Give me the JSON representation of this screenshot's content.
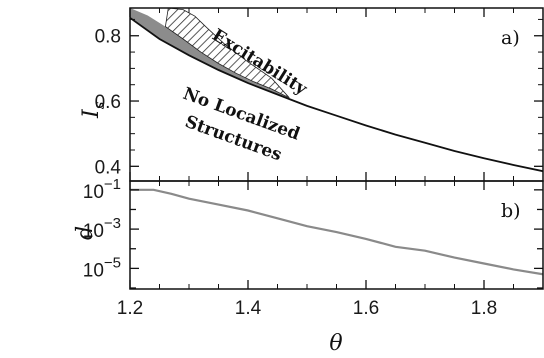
{
  "chart_data": [
    {
      "panel": "a)",
      "type": "area",
      "ylabel": "I",
      "ylabel_sub": "s",
      "xlim": [
        1.2,
        1.9
      ],
      "ylim": [
        0.355,
        0.885
      ],
      "yticks": [
        "0.4",
        "0.6",
        "0.8"
      ],
      "ytick_values": [
        0.4,
        0.6,
        0.8
      ],
      "region_labels": [
        "Excitability",
        "No Localized",
        "Structures"
      ],
      "boundary_curve": {
        "x": [
          1.2,
          1.25,
          1.3,
          1.35,
          1.4,
          1.45,
          1.5,
          1.55,
          1.6,
          1.65,
          1.7,
          1.75,
          1.8,
          1.85,
          1.9
        ],
        "y": [
          0.855,
          0.79,
          0.74,
          0.695,
          0.655,
          0.62,
          0.585,
          0.555,
          0.525,
          0.497,
          0.472,
          0.447,
          0.425,
          0.404,
          0.385
        ]
      },
      "gray_region_upper": {
        "x": [
          1.2,
          1.23,
          1.26,
          1.29,
          1.32,
          1.35,
          1.38,
          1.41,
          1.44,
          1.47
        ],
        "y": [
          0.885,
          0.862,
          0.828,
          0.79,
          0.75,
          0.715,
          0.685,
          0.659,
          0.637,
          0.61
        ]
      },
      "hatched_region_upper": {
        "x": [
          1.265,
          1.29,
          1.31,
          1.33,
          1.36,
          1.4,
          1.44,
          1.47
        ],
        "y": [
          0.885,
          0.88,
          0.86,
          0.825,
          0.775,
          0.72,
          0.67,
          0.61
        ]
      },
      "colors": {
        "gray": "#8c8c8c",
        "line": "#111111",
        "hatch": "#333333"
      }
    },
    {
      "panel": "b)",
      "type": "line",
      "ylabel": "d",
      "xlabel": "θ",
      "scale": "log",
      "xlim": [
        1.2,
        1.9
      ],
      "ylim_exp": [
        -6.05,
        -0.55
      ],
      "yticks_base": "10",
      "yticks_exp": [
        "−1",
        "−3",
        "−5"
      ],
      "ytick_exp_values": [
        -1,
        -3,
        -5
      ],
      "xticks": [
        "1.2",
        "1.4",
        "1.6",
        "1.8"
      ],
      "xtick_values": [
        1.2,
        1.4,
        1.6,
        1.8
      ],
      "series": [
        {
          "x": [
            1.2,
            1.24,
            1.27,
            1.3,
            1.35,
            1.4,
            1.45,
            1.5,
            1.55,
            1.6,
            1.65,
            1.7,
            1.75,
            1.8,
            1.85,
            1.9
          ],
          "log10_y": [
            -1.0,
            -1.0,
            -1.2,
            -1.45,
            -1.75,
            -2.05,
            -2.45,
            -2.85,
            -3.15,
            -3.5,
            -3.9,
            -4.1,
            -4.45,
            -4.75,
            -5.05,
            -5.3
          ],
          "color": "#8a8a8a"
        }
      ]
    }
  ]
}
